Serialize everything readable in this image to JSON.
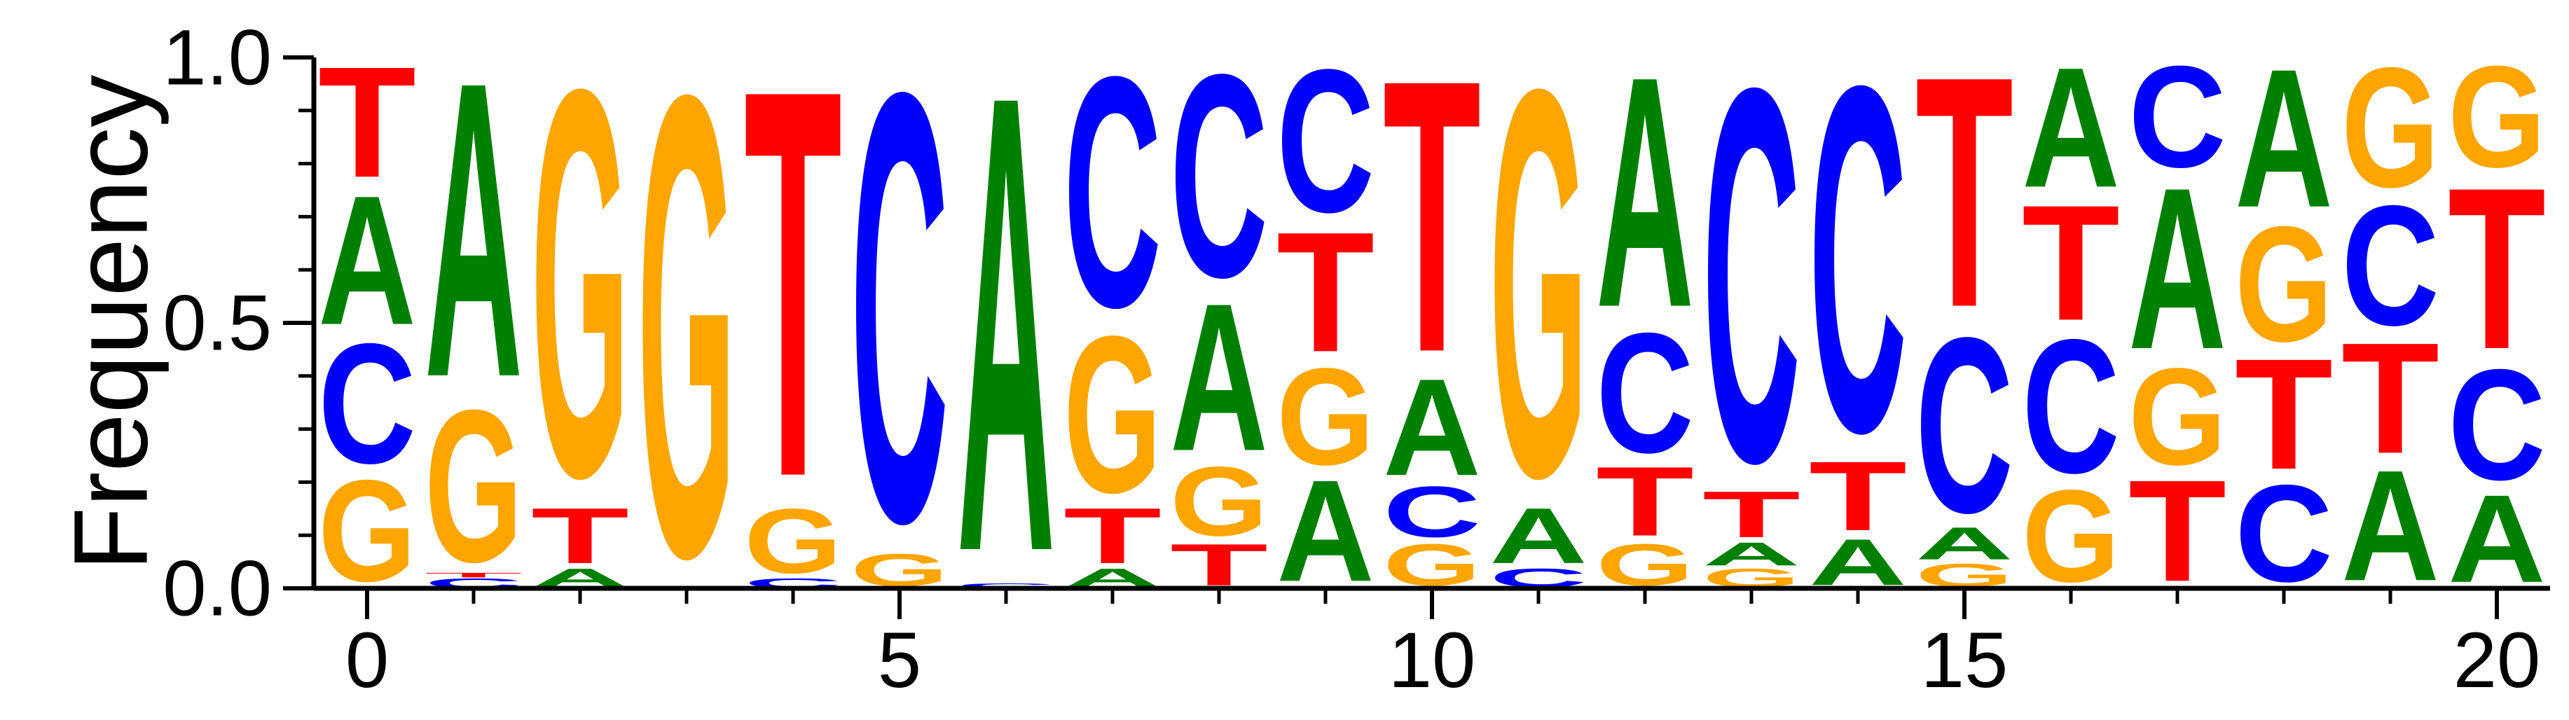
{
  "chart_data": {
    "type": "sequence-logo",
    "title": "",
    "xlabel": "",
    "ylabel": "Frequency",
    "xlim": [
      -0.5,
      20.5
    ],
    "ylim": [
      0,
      1
    ],
    "x_ticks": [
      "0",
      "5",
      "10",
      "15",
      "20"
    ],
    "y_ticks": [
      "0.0",
      "0.5",
      "1.0"
    ],
    "colors": {
      "A": "#008000",
      "C": "#0000ff",
      "G": "#ffa500",
      "T": "#ff0000"
    },
    "positions": [
      {
        "pos": 0,
        "frequencies": {
          "G": 0.22,
          "C": 0.26,
          "A": 0.28,
          "T": 0.24
        }
      },
      {
        "pos": 1,
        "frequencies": {
          "C": 0.02,
          "T": 0.01,
          "G": 0.33,
          "A": 0.64
        }
      },
      {
        "pos": 2,
        "frequencies": {
          "C": 0.0,
          "A": 0.04,
          "T": 0.12,
          "G": 0.84
        }
      },
      {
        "pos": 3,
        "frequencies": {
          "A": 0.0,
          "C": 0.0,
          "T": 0.0,
          "G": 1.0
        }
      },
      {
        "pos": 4,
        "frequencies": {
          "A": 0.0,
          "C": 0.02,
          "G": 0.14,
          "T": 0.84
        }
      },
      {
        "pos": 5,
        "frequencies": {
          "A": 0.0,
          "T": 0.0,
          "G": 0.07,
          "C": 0.93
        }
      },
      {
        "pos": 6,
        "frequencies": {
          "T": 0.0,
          "C": 0.01,
          "G": 0.0,
          "A": 0.99
        }
      },
      {
        "pos": 7,
        "frequencies": {
          "A": 0.04,
          "T": 0.12,
          "G": 0.34,
          "C": 0.5
        }
      },
      {
        "pos": 8,
        "frequencies": {
          "T": 0.09,
          "G": 0.15,
          "A": 0.32,
          "C": 0.44
        }
      },
      {
        "pos": 9,
        "frequencies": {
          "A": 0.22,
          "G": 0.21,
          "T": 0.26,
          "C": 0.31
        }
      },
      {
        "pos": 10,
        "frequencies": {
          "G": 0.09,
          "C": 0.11,
          "A": 0.21,
          "T": 0.59
        }
      },
      {
        "pos": 11,
        "frequencies": {
          "C": 0.04,
          "A": 0.12,
          "G": 0.84
        }
      },
      {
        "pos": 12,
        "frequencies": {
          "G": 0.09,
          "T": 0.15,
          "C": 0.26,
          "A": 0.5
        }
      },
      {
        "pos": 13,
        "frequencies": {
          "G": 0.04,
          "A": 0.05,
          "T": 0.1,
          "C": 0.81
        }
      },
      {
        "pos": 14,
        "frequencies": {
          "A": 0.1,
          "T": 0.15,
          "C": 0.75
        }
      },
      {
        "pos": 15,
        "frequencies": {
          "G": 0.05,
          "A": 0.07,
          "C": 0.38,
          "T": 0.5
        }
      },
      {
        "pos": 16,
        "frequencies": {
          "G": 0.2,
          "C": 0.29,
          "T": 0.25,
          "A": 0.26
        }
      },
      {
        "pos": 17,
        "frequencies": {
          "T": 0.22,
          "G": 0.21,
          "A": 0.35,
          "C": 0.22
        }
      },
      {
        "pos": 18,
        "frequencies": {
          "C": 0.21,
          "T": 0.24,
          "G": 0.25,
          "A": 0.3
        }
      },
      {
        "pos": 19,
        "frequencies": {
          "A": 0.24,
          "T": 0.24,
          "C": 0.26,
          "G": 0.26
        }
      },
      {
        "pos": 20,
        "frequencies": {
          "A": 0.19,
          "C": 0.24,
          "T": 0.35,
          "G": 0.22
        }
      }
    ]
  }
}
